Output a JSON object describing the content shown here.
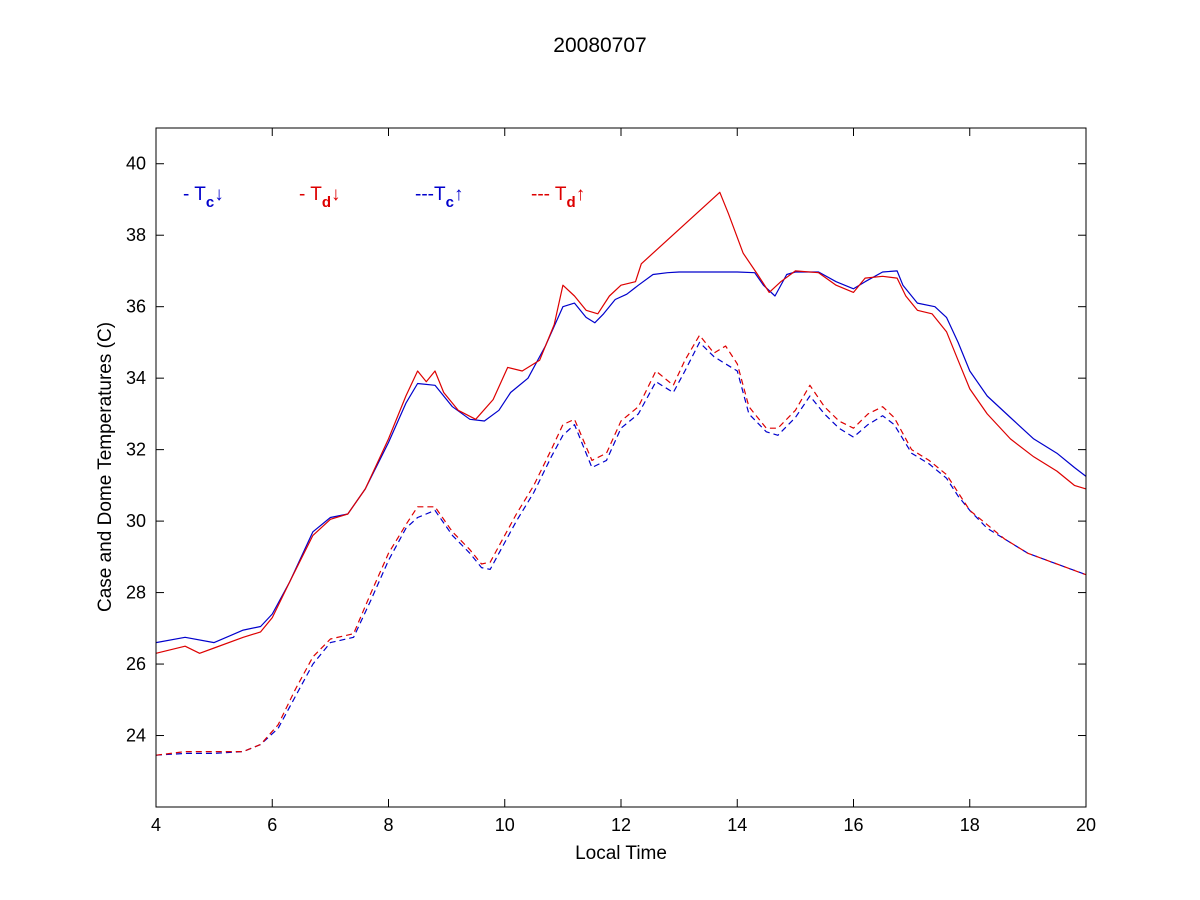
{
  "chart_data": {
    "type": "line",
    "title": "20080707",
    "xlabel": "Local Time",
    "ylabel": "Case and Dome Temperatures (C)",
    "xlim": [
      4,
      20
    ],
    "ylim": [
      22,
      41
    ],
    "xticks": [
      4,
      6,
      8,
      10,
      12,
      14,
      16,
      18,
      20
    ],
    "yticks": [
      24,
      26,
      28,
      30,
      32,
      34,
      36,
      38,
      40
    ],
    "grid": false,
    "legend": {
      "placement": "top-left, inside axes, single row",
      "entries": [
        {
          "prefix": "- T",
          "sub": "c",
          "arrow": "↓",
          "color": "#0000cc"
        },
        {
          "prefix": "- T",
          "sub": "d",
          "arrow": "↓",
          "color": "#dd0000"
        },
        {
          "prefix": "---T",
          "sub": "c",
          "arrow": "↑",
          "color": "#0000cc"
        },
        {
          "prefix": "--- T",
          "sub": "d",
          "arrow": "↑",
          "color": "#dd0000"
        }
      ]
    },
    "series": [
      {
        "color": "#0000cc",
        "dashed": false,
        "points": [
          [
            4.0,
            26.6
          ],
          [
            4.5,
            26.75
          ],
          [
            5.0,
            26.6
          ],
          [
            5.5,
            26.95
          ],
          [
            5.8,
            27.05
          ],
          [
            6.0,
            27.4
          ],
          [
            6.3,
            28.3
          ],
          [
            6.7,
            29.7
          ],
          [
            7.0,
            30.1
          ],
          [
            7.3,
            30.2
          ],
          [
            7.6,
            30.9
          ],
          [
            8.0,
            32.2
          ],
          [
            8.3,
            33.3
          ],
          [
            8.5,
            33.85
          ],
          [
            8.8,
            33.8
          ],
          [
            9.1,
            33.2
          ],
          [
            9.4,
            32.85
          ],
          [
            9.65,
            32.8
          ],
          [
            9.9,
            33.1
          ],
          [
            10.1,
            33.6
          ],
          [
            10.4,
            34.0
          ],
          [
            10.7,
            34.9
          ],
          [
            11.0,
            36.0
          ],
          [
            11.2,
            36.1
          ],
          [
            11.4,
            35.7
          ],
          [
            11.55,
            35.55
          ],
          [
            11.7,
            35.8
          ],
          [
            11.9,
            36.2
          ],
          [
            12.1,
            36.35
          ],
          [
            12.3,
            36.6
          ],
          [
            12.55,
            36.9
          ],
          [
            12.8,
            36.95
          ],
          [
            13.0,
            36.97
          ],
          [
            14.0,
            36.97
          ],
          [
            14.3,
            36.95
          ],
          [
            14.45,
            36.6
          ],
          [
            14.65,
            36.3
          ],
          [
            14.85,
            36.9
          ],
          [
            15.0,
            36.97
          ],
          [
            15.4,
            36.97
          ],
          [
            15.7,
            36.7
          ],
          [
            16.0,
            36.5
          ],
          [
            16.2,
            36.7
          ],
          [
            16.5,
            36.97
          ],
          [
            16.75,
            37.0
          ],
          [
            16.85,
            36.6
          ],
          [
            17.1,
            36.1
          ],
          [
            17.4,
            36.0
          ],
          [
            17.6,
            35.7
          ],
          [
            17.8,
            35.0
          ],
          [
            18.0,
            34.2
          ],
          [
            18.3,
            33.5
          ],
          [
            18.7,
            32.9
          ],
          [
            19.1,
            32.3
          ],
          [
            19.5,
            31.9
          ],
          [
            19.8,
            31.5
          ],
          [
            20.0,
            31.25
          ]
        ]
      },
      {
        "color": "#dd0000",
        "dashed": false,
        "points": [
          [
            4.0,
            26.3
          ],
          [
            4.5,
            26.5
          ],
          [
            4.75,
            26.3
          ],
          [
            5.0,
            26.45
          ],
          [
            5.5,
            26.75
          ],
          [
            5.8,
            26.9
          ],
          [
            6.0,
            27.3
          ],
          [
            6.3,
            28.3
          ],
          [
            6.7,
            29.6
          ],
          [
            7.0,
            30.05
          ],
          [
            7.3,
            30.2
          ],
          [
            7.6,
            30.9
          ],
          [
            8.0,
            32.3
          ],
          [
            8.3,
            33.5
          ],
          [
            8.5,
            34.2
          ],
          [
            8.65,
            33.9
          ],
          [
            8.8,
            34.2
          ],
          [
            8.95,
            33.6
          ],
          [
            9.2,
            33.1
          ],
          [
            9.5,
            32.85
          ],
          [
            9.8,
            33.4
          ],
          [
            10.05,
            34.3
          ],
          [
            10.3,
            34.2
          ],
          [
            10.6,
            34.5
          ],
          [
            10.85,
            35.5
          ],
          [
            11.0,
            36.6
          ],
          [
            11.2,
            36.3
          ],
          [
            11.4,
            35.9
          ],
          [
            11.6,
            35.8
          ],
          [
            11.8,
            36.3
          ],
          [
            12.0,
            36.6
          ],
          [
            12.25,
            36.7
          ],
          [
            12.35,
            37.2
          ],
          [
            13.7,
            39.2
          ],
          [
            13.85,
            38.6
          ],
          [
            14.1,
            37.5
          ],
          [
            14.35,
            36.9
          ],
          [
            14.55,
            36.4
          ],
          [
            14.75,
            36.7
          ],
          [
            15.0,
            37.0
          ],
          [
            15.4,
            36.95
          ],
          [
            15.7,
            36.6
          ],
          [
            16.0,
            36.4
          ],
          [
            16.2,
            36.8
          ],
          [
            16.5,
            36.85
          ],
          [
            16.75,
            36.8
          ],
          [
            16.9,
            36.3
          ],
          [
            17.1,
            35.9
          ],
          [
            17.35,
            35.8
          ],
          [
            17.6,
            35.3
          ],
          [
            17.8,
            34.5
          ],
          [
            18.0,
            33.7
          ],
          [
            18.3,
            33.0
          ],
          [
            18.7,
            32.3
          ],
          [
            19.1,
            31.8
          ],
          [
            19.5,
            31.4
          ],
          [
            19.8,
            31.0
          ],
          [
            20.0,
            30.9
          ]
        ]
      },
      {
        "color": "#0000cc",
        "dashed": true,
        "points": [
          [
            4.0,
            23.45
          ],
          [
            4.5,
            23.5
          ],
          [
            5.0,
            23.5
          ],
          [
            5.5,
            23.55
          ],
          [
            5.8,
            23.75
          ],
          [
            6.1,
            24.2
          ],
          [
            6.4,
            25.1
          ],
          [
            6.7,
            26.0
          ],
          [
            7.0,
            26.6
          ],
          [
            7.4,
            26.75
          ],
          [
            7.7,
            27.8
          ],
          [
            8.0,
            28.9
          ],
          [
            8.3,
            29.8
          ],
          [
            8.5,
            30.1
          ],
          [
            8.8,
            30.3
          ],
          [
            9.1,
            29.6
          ],
          [
            9.4,
            29.1
          ],
          [
            9.6,
            28.7
          ],
          [
            9.75,
            28.65
          ],
          [
            9.9,
            29.1
          ],
          [
            10.2,
            30.0
          ],
          [
            10.5,
            30.8
          ],
          [
            10.8,
            31.8
          ],
          [
            11.0,
            32.4
          ],
          [
            11.2,
            32.7
          ],
          [
            11.5,
            31.5
          ],
          [
            11.75,
            31.7
          ],
          [
            12.0,
            32.6
          ],
          [
            12.3,
            33.0
          ],
          [
            12.6,
            33.9
          ],
          [
            12.9,
            33.6
          ],
          [
            13.1,
            34.2
          ],
          [
            13.35,
            35.0
          ],
          [
            13.6,
            34.6
          ],
          [
            13.8,
            34.4
          ],
          [
            14.0,
            34.2
          ],
          [
            14.2,
            33.0
          ],
          [
            14.5,
            32.5
          ],
          [
            14.7,
            32.4
          ],
          [
            15.0,
            32.9
          ],
          [
            15.25,
            33.5
          ],
          [
            15.5,
            33.0
          ],
          [
            15.75,
            32.6
          ],
          [
            16.0,
            32.35
          ],
          [
            16.25,
            32.7
          ],
          [
            16.5,
            32.95
          ],
          [
            16.7,
            32.7
          ],
          [
            17.0,
            31.9
          ],
          [
            17.3,
            31.6
          ],
          [
            17.6,
            31.2
          ],
          [
            17.8,
            30.7
          ],
          [
            18.0,
            30.3
          ],
          [
            18.3,
            29.8
          ],
          [
            18.6,
            29.5
          ],
          [
            19.0,
            29.1
          ],
          [
            19.5,
            28.8
          ],
          [
            20.0,
            28.5
          ]
        ]
      },
      {
        "color": "#dd0000",
        "dashed": true,
        "points": [
          [
            4.0,
            23.45
          ],
          [
            4.5,
            23.55
          ],
          [
            5.0,
            23.55
          ],
          [
            5.5,
            23.55
          ],
          [
            5.8,
            23.75
          ],
          [
            6.1,
            24.3
          ],
          [
            6.4,
            25.3
          ],
          [
            6.7,
            26.2
          ],
          [
            7.0,
            26.7
          ],
          [
            7.4,
            26.85
          ],
          [
            7.7,
            28.0
          ],
          [
            8.0,
            29.1
          ],
          [
            8.3,
            29.9
          ],
          [
            8.5,
            30.4
          ],
          [
            8.8,
            30.4
          ],
          [
            9.1,
            29.7
          ],
          [
            9.4,
            29.2
          ],
          [
            9.6,
            28.8
          ],
          [
            9.75,
            28.85
          ],
          [
            9.9,
            29.3
          ],
          [
            10.2,
            30.2
          ],
          [
            10.5,
            31.0
          ],
          [
            10.8,
            32.0
          ],
          [
            11.0,
            32.7
          ],
          [
            11.2,
            32.85
          ],
          [
            11.5,
            31.7
          ],
          [
            11.75,
            31.9
          ],
          [
            12.0,
            32.8
          ],
          [
            12.3,
            33.2
          ],
          [
            12.6,
            34.2
          ],
          [
            12.9,
            33.8
          ],
          [
            13.1,
            34.5
          ],
          [
            13.35,
            35.2
          ],
          [
            13.6,
            34.7
          ],
          [
            13.8,
            34.9
          ],
          [
            14.0,
            34.4
          ],
          [
            14.2,
            33.2
          ],
          [
            14.5,
            32.6
          ],
          [
            14.7,
            32.6
          ],
          [
            15.0,
            33.1
          ],
          [
            15.25,
            33.8
          ],
          [
            15.5,
            33.2
          ],
          [
            15.75,
            32.8
          ],
          [
            16.0,
            32.6
          ],
          [
            16.25,
            33.0
          ],
          [
            16.5,
            33.2
          ],
          [
            16.7,
            32.9
          ],
          [
            17.0,
            32.0
          ],
          [
            17.3,
            31.7
          ],
          [
            17.6,
            31.3
          ],
          [
            17.8,
            30.8
          ],
          [
            18.0,
            30.3
          ],
          [
            18.3,
            29.9
          ],
          [
            18.6,
            29.5
          ],
          [
            19.0,
            29.1
          ],
          [
            19.5,
            28.8
          ],
          [
            20.0,
            28.5
          ]
        ]
      }
    ]
  }
}
